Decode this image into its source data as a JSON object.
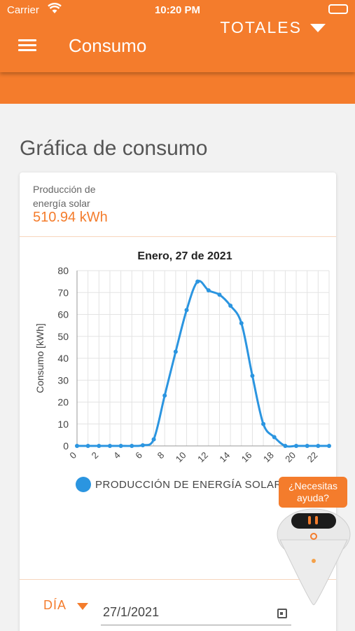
{
  "status_bar": {
    "carrier": "Carrier",
    "time": "10:20 PM"
  },
  "app_bar": {
    "title": "Consumo",
    "selector": "TOTALES"
  },
  "section_title": "Gráfica de consumo",
  "summary": {
    "label": "Producción de energía solar",
    "value": "510.94 kWh"
  },
  "chart_data": {
    "type": "line",
    "title": "Enero, 27 de 2021",
    "xlabel": "",
    "ylabel": "Consumo [kWh]",
    "x": [
      0,
      1,
      2,
      3,
      4,
      5,
      6,
      7,
      8,
      9,
      10,
      11,
      12,
      13,
      14,
      15,
      16,
      17,
      18,
      19,
      20,
      21,
      22,
      23
    ],
    "x_tick_labels": [
      "0",
      "2",
      "4",
      "6",
      "8",
      "10",
      "12",
      "14",
      "16",
      "18",
      "20",
      "22"
    ],
    "xlim": [
      0,
      23
    ],
    "ylim": [
      0,
      80
    ],
    "y_ticks": [
      0,
      10,
      20,
      30,
      40,
      50,
      60,
      70,
      80
    ],
    "grid": true,
    "legend_position": "bottom",
    "series": [
      {
        "name": "PRODUCCIÓN DE ENERGÍA SOLAR",
        "color": "#2b95e0",
        "values": [
          0,
          0,
          0,
          0,
          0,
          0,
          0.3,
          3,
          23,
          43,
          62,
          75,
          71,
          69,
          64,
          56,
          32,
          10,
          4,
          0,
          0,
          0,
          0,
          0
        ]
      }
    ]
  },
  "date_filter": {
    "period_label": "DÍA",
    "date_value": "27/1/2021"
  },
  "help_widget": {
    "text": "¿Necesitas ayuda?"
  },
  "colors": {
    "accent": "#f47c2c",
    "series": "#2b95e0"
  }
}
